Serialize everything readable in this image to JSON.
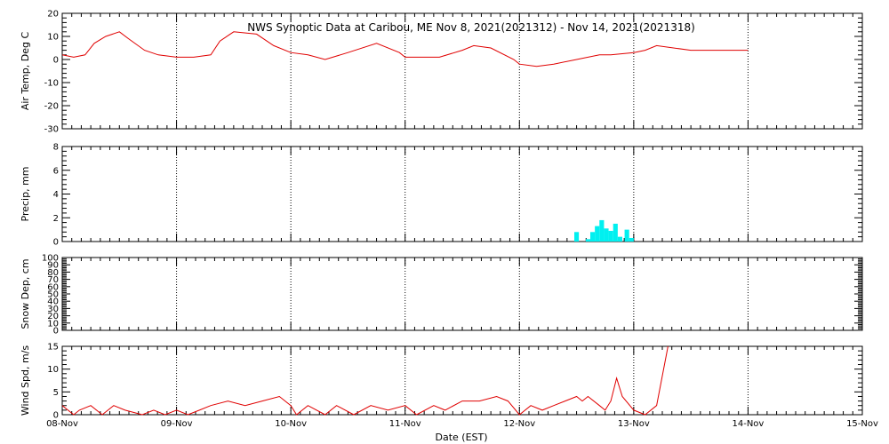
{
  "title": "NWS Synoptic Data at Caribou, ME   Nov  8, 2021(2021312) - Nov 14, 2021(2021318)",
  "xlabel": "Date (EST)",
  "x_tick_labels": [
    "08-Nov",
    "09-Nov",
    "10-Nov",
    "11-Nov",
    "12-Nov",
    "13-Nov",
    "14-Nov",
    "15-Nov"
  ],
  "colors": {
    "line": "#e00000",
    "precip": "#00f0f0",
    "axes": "#000000",
    "grid": "#000000"
  },
  "chart_data": [
    {
      "type": "line",
      "ylabel": "Air Temp, Deg C",
      "ylim": [
        -30,
        20
      ],
      "yticks": [
        -30,
        -20,
        -10,
        0,
        10,
        20
      ],
      "xlim_days": [
        0,
        7
      ],
      "grid": true,
      "series": [
        {
          "color": "#e00000",
          "x": [
            0,
            0.1,
            0.2,
            0.28,
            0.38,
            0.5,
            0.58,
            0.72,
            0.84,
            1.0,
            1.15,
            1.3,
            1.38,
            1.5,
            1.7,
            1.85,
            2.0,
            2.15,
            2.3,
            2.5,
            2.75,
            2.95,
            3.0,
            3.3,
            3.5,
            3.6,
            3.75,
            3.95,
            4.0,
            4.15,
            4.3,
            4.5,
            4.7,
            4.8,
            5.0,
            5.1,
            5.2,
            5.5,
            6.0
          ],
          "y": [
            2,
            1,
            2,
            7,
            10,
            12,
            9,
            4,
            2,
            1,
            1,
            2,
            8,
            12,
            11,
            6,
            3,
            2,
            0,
            3,
            7,
            3,
            1,
            1,
            4,
            6,
            5,
            0,
            -2,
            -3,
            -2,
            0,
            2,
            2,
            3,
            4,
            6,
            4,
            4
          ]
        }
      ]
    },
    {
      "type": "bar",
      "ylabel": "Precip, mm",
      "ylim": [
        0,
        8
      ],
      "yticks": [
        0,
        2,
        4,
        6,
        8
      ],
      "grid": true,
      "bar_width_days": 0.04,
      "x": [
        4.48,
        4.58,
        4.62,
        4.66,
        4.7,
        4.74,
        4.78,
        4.82,
        4.86,
        4.92,
        4.96
      ],
      "values": [
        0.8,
        0.2,
        0.8,
        1.3,
        1.8,
        1.1,
        0.9,
        1.5,
        0.4,
        1.0,
        0.3
      ]
    },
    {
      "type": "line",
      "ylabel": "Snow Dep, cm",
      "ylim": [
        0,
        100
      ],
      "yticks": [
        0,
        10,
        20,
        30,
        40,
        50,
        60,
        70,
        80,
        90,
        100
      ],
      "grid": true,
      "series": []
    },
    {
      "type": "line",
      "ylabel": "Wind Spd, m/s",
      "ylim": [
        0,
        15
      ],
      "yticks": [
        0,
        5,
        10,
        15
      ],
      "grid": true,
      "series": [
        {
          "color": "#e00000",
          "x": [
            0,
            0.1,
            0.15,
            0.25,
            0.35,
            0.45,
            0.55,
            0.7,
            0.8,
            0.9,
            1.0,
            1.1,
            1.2,
            1.3,
            1.45,
            1.6,
            1.75,
            1.9,
            2.0,
            2.05,
            2.15,
            2.3,
            2.4,
            2.55,
            2.7,
            2.85,
            3.0,
            3.1,
            3.25,
            3.35,
            3.5,
            3.65,
            3.8,
            3.9,
            4.0,
            4.1,
            4.2,
            4.3,
            4.4,
            4.5,
            4.55,
            4.6,
            4.7,
            4.75,
            4.8,
            4.85,
            4.9,
            5.0,
            5.1,
            5.2,
            5.3
          ],
          "y": [
            2,
            0,
            1,
            2,
            0,
            2,
            1,
            0,
            1,
            0,
            1,
            0,
            1,
            2,
            3,
            2,
            3,
            4,
            2,
            0,
            2,
            0,
            2,
            0,
            2,
            1,
            2,
            0,
            2,
            1,
            3,
            3,
            4,
            3,
            0,
            2,
            1,
            2,
            3,
            4,
            3,
            4,
            2,
            1,
            3,
            8,
            4,
            1,
            0,
            2,
            15
          ]
        }
      ]
    }
  ]
}
